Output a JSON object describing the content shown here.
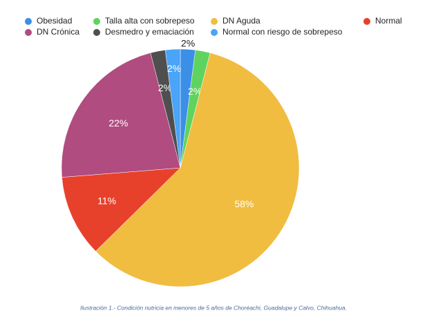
{
  "chart_data": {
    "type": "pie",
    "categories": [
      "Obesidad",
      "Talla alta con sobrepeso",
      "DN Aguda",
      "Normal",
      "DN Crónica",
      "Desmedro y emaciación",
      "Normal con riesgo de sobrepeso"
    ],
    "values": [
      2,
      2,
      58,
      11,
      22,
      2,
      2
    ],
    "value_labels": [
      "2%",
      "2%",
      "58%",
      "11%",
      "22%",
      "2%",
      "2%"
    ],
    "colors": [
      "#3b8fe6",
      "#5fd35f",
      "#f0bd41",
      "#e8412b",
      "#b04c7f",
      "#4f4f4f",
      "#4aa4f7"
    ],
    "caption": "Ilustración 1.- Condición nutricia en menores de 5 años de Choréachi, Guadalupe y Calvo, Chihuahua."
  }
}
